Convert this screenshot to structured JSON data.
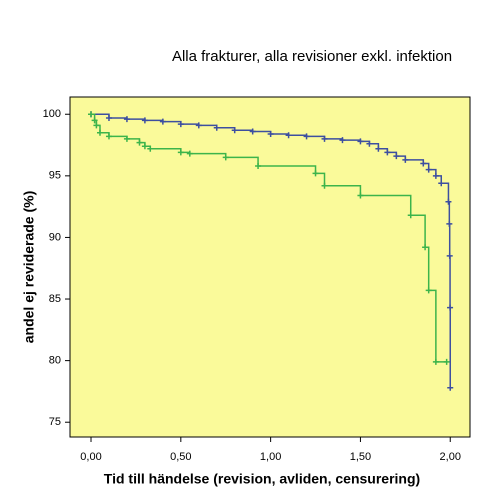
{
  "chart_data": {
    "type": "line",
    "title": "Alla frakturer, alla revisioner exkl. infektion",
    "xlabel": "Tid till händelse (revision, avliden, censurering)",
    "ylabel": "andel ej reviderade (%)",
    "xlim": [
      -0.117,
      2.11
    ],
    "ylim": [
      73.8,
      101.4
    ],
    "xticks": [
      {
        "value": 0,
        "label": "0,00"
      },
      {
        "value": 0.5,
        "label": "0,50"
      },
      {
        "value": 1,
        "label": "1,00"
      },
      {
        "value": 1.5,
        "label": "1,50"
      },
      {
        "value": 2,
        "label": "2,00"
      }
    ],
    "yticks": [
      75,
      80,
      85,
      90,
      95,
      100
    ],
    "background": "#fafa9a",
    "steps": true,
    "series": [
      {
        "color": "#3d4fa0",
        "x": [
          0,
          0.1,
          0.2,
          0.3,
          0.4,
          0.5,
          0.6,
          0.7,
          0.8,
          0.9,
          1.0,
          1.1,
          1.2,
          1.3,
          1.4,
          1.5,
          1.55,
          1.6,
          1.65,
          1.7,
          1.75,
          1.85,
          1.88,
          1.92,
          1.95,
          1.99,
          1.995,
          1.997,
          1.999,
          2.0
        ],
        "values": [
          100,
          99.7,
          99.6,
          99.5,
          99.4,
          99.2,
          99.1,
          98.9,
          98.7,
          98.6,
          98.4,
          98.3,
          98.2,
          98.0,
          97.9,
          97.8,
          97.6,
          97.2,
          96.9,
          96.6,
          96.3,
          96.0,
          95.5,
          95.0,
          94.4,
          92.9,
          91.1,
          88.5,
          84.3,
          77.8
        ]
      },
      {
        "color": "#3cb44b",
        "x": [
          0,
          0.02,
          0.03,
          0.05,
          0.1,
          0.2,
          0.27,
          0.3,
          0.33,
          0.5,
          0.55,
          0.75,
          0.93,
          1.25,
          1.3,
          1.5,
          1.78,
          1.86,
          1.88,
          1.92,
          1.98
        ],
        "values": [
          100,
          99.5,
          99.1,
          98.5,
          98.2,
          98.0,
          97.7,
          97.4,
          97.2,
          96.9,
          96.8,
          96.5,
          95.8,
          95.2,
          94.2,
          93.4,
          91.8,
          89.2,
          85.7,
          79.9,
          79.9
        ]
      }
    ]
  }
}
